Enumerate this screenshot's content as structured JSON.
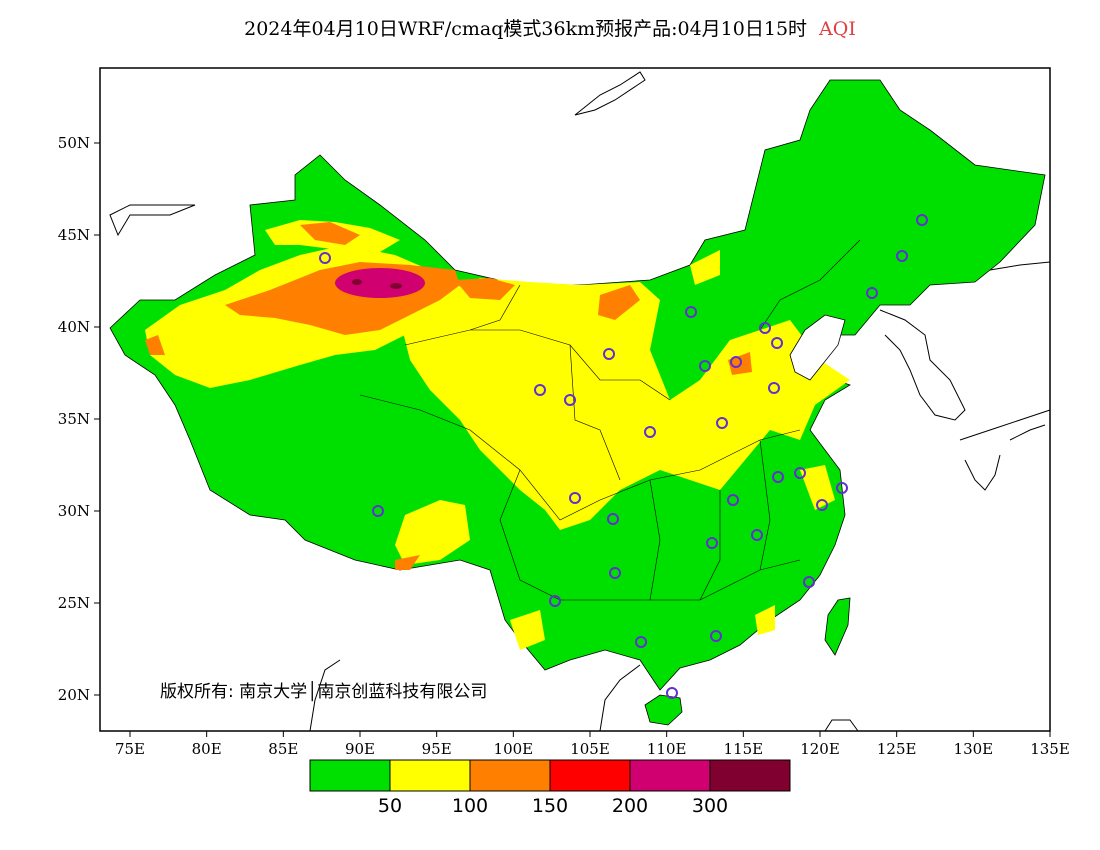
{
  "title": {
    "main": "2024年04月10日WRF/cmaq模式36km预报产品:04月10日15时",
    "variable": "AQI",
    "variable_color": "#e04040"
  },
  "map": {
    "longitude_ticks": [
      "75E",
      "80E",
      "85E",
      "90E",
      "95E",
      "100E",
      "105E",
      "110E",
      "115E",
      "120E",
      "125E",
      "130E",
      "135E"
    ],
    "latitude_ticks": [
      "20N",
      "25N",
      "30N",
      "35N",
      "40N",
      "45N",
      "50N"
    ],
    "copyright_text": "版权所有: 南京大学│南京创蓝科技有限公司"
  },
  "legend": {
    "colors": [
      "#00e000",
      "#ffff00",
      "#ff8000",
      "#ff0000",
      "#d00070",
      "#800030"
    ],
    "labels": [
      "50",
      "100",
      "150",
      "200",
      "300"
    ]
  },
  "stations_count_note": ""
}
